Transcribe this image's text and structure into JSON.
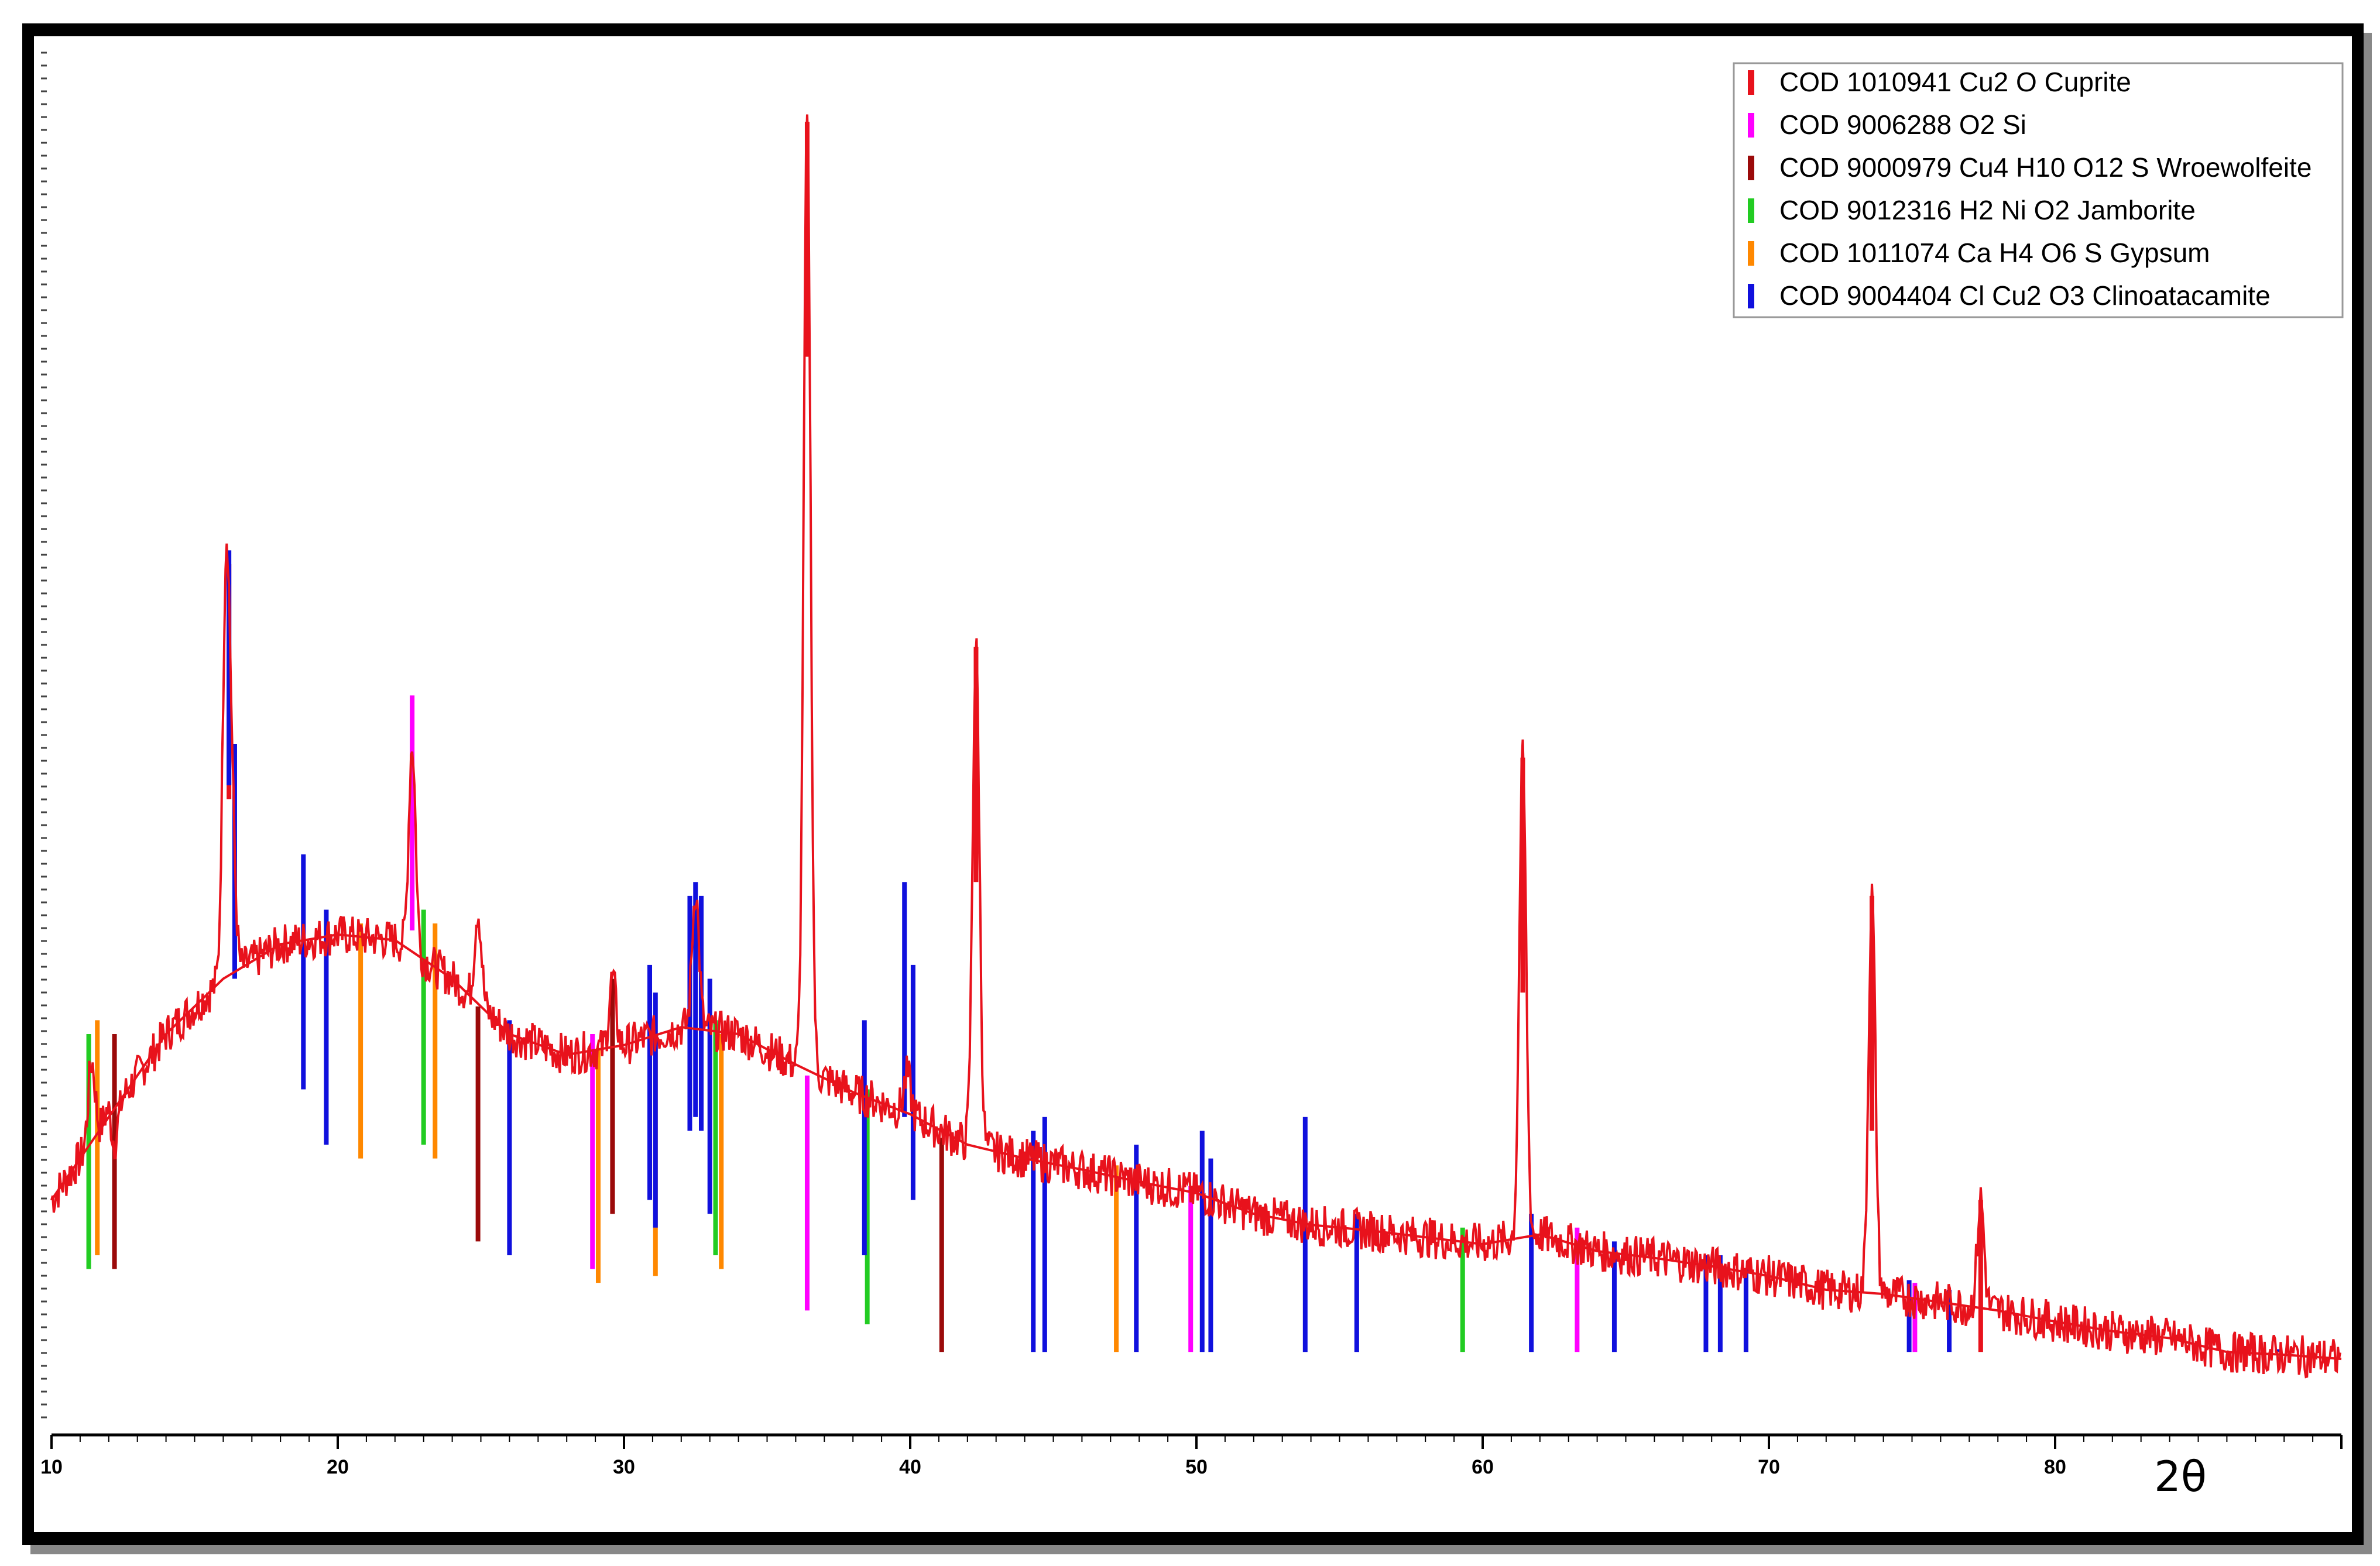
{
  "chart_data": {
    "type": "line",
    "title": "",
    "xlabel": "2θ",
    "ylabel": "",
    "xlim": [
      10,
      90
    ],
    "ylim": [
      0,
      1000
    ],
    "grid": false,
    "legend_position": "top-right",
    "x_ticks": [
      10,
      20,
      30,
      40,
      50,
      60,
      70,
      80
    ],
    "pattern": {
      "color": "#e8121c",
      "background": [
        [
          10,
          170
        ],
        [
          12,
          230
        ],
        [
          14,
          290
        ],
        [
          16,
          330
        ],
        [
          18,
          355
        ],
        [
          20,
          362
        ],
        [
          22,
          358
        ],
        [
          24,
          330
        ],
        [
          26,
          290
        ],
        [
          28,
          275
        ],
        [
          30,
          282
        ],
        [
          32,
          295
        ],
        [
          34,
          290
        ],
        [
          36,
          268
        ],
        [
          38,
          248
        ],
        [
          40,
          232
        ],
        [
          42,
          210
        ],
        [
          44,
          200
        ],
        [
          46,
          192
        ],
        [
          48,
          183
        ],
        [
          50,
          175
        ],
        [
          52,
          160
        ],
        [
          54,
          152
        ],
        [
          56,
          148
        ],
        [
          58,
          143
        ],
        [
          60,
          138
        ],
        [
          62,
          145
        ],
        [
          64,
          133
        ],
        [
          66,
          128
        ],
        [
          68,
          122
        ],
        [
          70,
          115
        ],
        [
          72,
          105
        ],
        [
          74,
          102
        ],
        [
          76,
          96
        ],
        [
          78,
          90
        ],
        [
          80,
          82
        ],
        [
          82,
          75
        ],
        [
          84,
          70
        ],
        [
          86,
          60
        ],
        [
          88,
          58
        ],
        [
          90,
          55
        ]
      ],
      "peaks": [
        {
          "x": 11.4,
          "y": 270
        },
        {
          "x": 12.0,
          "y": 240
        },
        {
          "x": 12.2,
          "y": 210
        },
        {
          "x": 16.1,
          "y": 620
        },
        {
          "x": 16.3,
          "y": 440
        },
        {
          "x": 22.6,
          "y": 500
        },
        {
          "x": 24.9,
          "y": 380
        },
        {
          "x": 29.6,
          "y": 330
        },
        {
          "x": 32.5,
          "y": 395
        },
        {
          "x": 36.4,
          "y": 950
        },
        {
          "x": 39.9,
          "y": 260
        },
        {
          "x": 42.3,
          "y": 570
        },
        {
          "x": 61.4,
          "y": 490
        },
        {
          "x": 73.6,
          "y": 390
        },
        {
          "x": 77.4,
          "y": 170
        }
      ]
    },
    "series": [
      {
        "name": "COD 1010941 Cu2 O Cuprite",
        "color": "#e8121c",
        "lines": [
          [
            36.4,
            950
          ],
          [
            42.3,
            570
          ],
          [
            61.4,
            490
          ],
          [
            73.6,
            390
          ],
          [
            77.4,
            170
          ],
          [
            16.2,
            630
          ],
          [
            29.6,
            330
          ]
        ]
      },
      {
        "name": "COD 9006288 O2 Si",
        "color": "#ff00ff",
        "lines": [
          [
            22.6,
            535
          ],
          [
            28.9,
            290
          ],
          [
            36.4,
            260
          ],
          [
            49.8,
            180
          ],
          [
            63.3,
            150
          ],
          [
            75.1,
            110
          ]
        ]
      },
      {
        "name": "COD 9000979 Cu4 H10 O12 S Wroewolfeite",
        "color": "#9b0a0a",
        "lines": [
          [
            12.2,
            290
          ],
          [
            24.9,
            310
          ],
          [
            29.6,
            330
          ],
          [
            41.1,
            215
          ]
        ]
      },
      {
        "name": "COD 9012316 H2 Ni O2 Jamborite",
        "color": "#22cc22",
        "lines": [
          [
            11.3,
            290
          ],
          [
            23.0,
            380
          ],
          [
            33.2,
            300
          ],
          [
            38.5,
            250
          ],
          [
            59.3,
            150
          ]
        ]
      },
      {
        "name": "COD 1011074 Ca H4 O6 S Gypsum",
        "color": "#ff8800",
        "lines": [
          [
            11.6,
            300
          ],
          [
            20.8,
            370
          ],
          [
            23.4,
            370
          ],
          [
            29.1,
            280
          ],
          [
            31.1,
            285
          ],
          [
            33.4,
            290
          ],
          [
            47.2,
            195
          ]
        ]
      },
      {
        "name": "COD 9004404 Cl Cu2 O3 Clinoatacamite",
        "color": "#1010dd",
        "lines": [
          [
            16.2,
            640
          ],
          [
            16.4,
            500
          ],
          [
            18.8,
            420
          ],
          [
            19.6,
            380
          ],
          [
            26.0,
            300
          ],
          [
            30.9,
            340
          ],
          [
            31.1,
            320
          ],
          [
            32.3,
            390
          ],
          [
            32.5,
            400
          ],
          [
            32.7,
            390
          ],
          [
            33.0,
            330
          ],
          [
            38.4,
            300
          ],
          [
            39.8,
            400
          ],
          [
            40.1,
            340
          ],
          [
            44.3,
            220
          ],
          [
            44.7,
            230
          ],
          [
            47.9,
            210
          ],
          [
            50.2,
            220
          ],
          [
            50.5,
            200
          ],
          [
            53.8,
            230
          ],
          [
            55.6,
            160
          ],
          [
            61.7,
            160
          ],
          [
            64.6,
            140
          ],
          [
            67.8,
            130
          ],
          [
            68.3,
            130
          ],
          [
            69.2,
            120
          ],
          [
            74.9,
            112
          ],
          [
            76.3,
            105
          ],
          [
            87.8,
            62
          ]
        ]
      }
    ]
  }
}
